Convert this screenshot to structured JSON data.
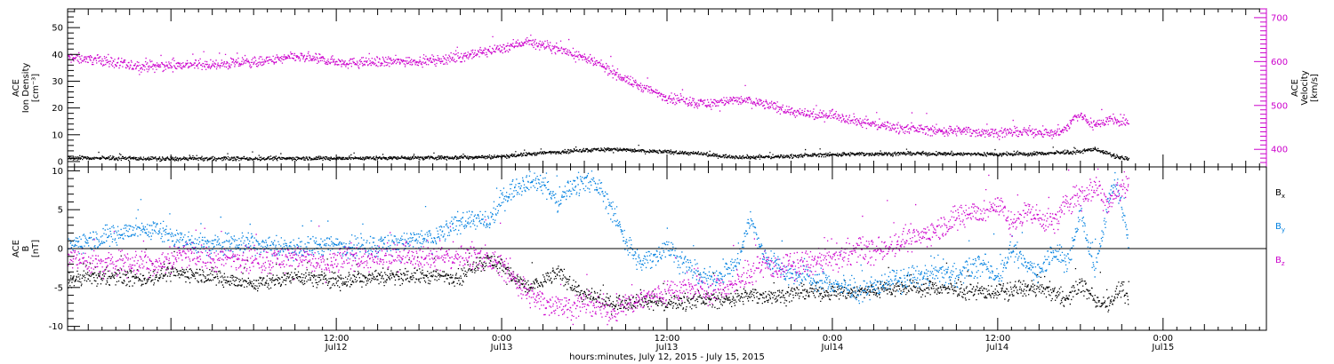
{
  "colors": {
    "black": "#000000",
    "magenta": "#cc00cc",
    "blue": "#0080e0",
    "axis": "#000000"
  },
  "xaxis": {
    "title": "hours:minutes, July 12, 2015 - July 15, 2015",
    "range_hours": [
      -7.5,
      79.5
    ],
    "ticks": [
      {
        "hour": 12,
        "time": "12:00",
        "date": "Jul12"
      },
      {
        "hour": 24,
        "time": "0:00",
        "date": "Jul13"
      },
      {
        "hour": 36,
        "time": "12:00",
        "date": "Jul13"
      },
      {
        "hour": 48,
        "time": "0:00",
        "date": "Jul14"
      },
      {
        "hour": 60,
        "time": "12:00",
        "date": "Jul14"
      },
      {
        "hour": 72,
        "time": "0:00",
        "date": "Jul15"
      }
    ]
  },
  "chart_data": [
    {
      "type": "scatter",
      "panel": "top",
      "left_axis": {
        "label_lines": [
          "ACE",
          "Ion Density",
          "[cm⁻³]"
        ],
        "ylim": [
          -2,
          57
        ],
        "ticks": [
          {
            "v": 0,
            "t": "0"
          },
          {
            "v": 10,
            "t": "10"
          },
          {
            "v": 20,
            "t": "20"
          },
          {
            "v": 30,
            "t": "30"
          },
          {
            "v": 40,
            "t": "40"
          },
          {
            "v": 50,
            "t": "50"
          }
        ]
      },
      "right_axis": {
        "label_lines": [
          "ACE",
          "Velocity",
          "[km/s]"
        ],
        "ylim": [
          360,
          720
        ],
        "ticks": [
          {
            "v": 400,
            "t": "400"
          },
          {
            "v": 500,
            "t": "500"
          },
          {
            "v": 600,
            "t": "600"
          },
          {
            "v": 700,
            "t": "700"
          }
        ]
      },
      "series": [
        {
          "axis": "right",
          "color": "magenta",
          "noise": 10,
          "x": [
            -7.5,
            -5,
            -3,
            -1,
            1,
            3,
            5,
            7,
            9,
            11,
            13,
            15,
            17,
            19,
            21,
            22,
            23,
            24,
            25,
            25.5,
            26,
            27,
            28,
            29,
            30,
            31,
            32,
            33,
            34,
            35,
            36,
            37,
            38,
            39,
            40,
            41,
            42,
            43,
            44,
            45,
            46,
            47,
            48,
            49,
            50,
            51,
            52,
            53,
            54,
            55,
            56,
            57,
            58,
            59,
            60,
            61,
            62,
            63,
            64,
            64.5,
            65,
            65.5,
            66,
            67,
            68,
            69,
            69.5
          ],
          "y": [
            610,
            605,
            590,
            590,
            595,
            592,
            598,
            602,
            612,
            605,
            598,
            600,
            602,
            603,
            612,
            618,
            625,
            632,
            640,
            645,
            645,
            637,
            630,
            622,
            608,
            595,
            578,
            560,
            545,
            532,
            520,
            515,
            508,
            505,
            510,
            513,
            512,
            505,
            496,
            488,
            480,
            478,
            482,
            472,
            464,
            458,
            454,
            450,
            448,
            445,
            443,
            443,
            442,
            440,
            440,
            440,
            441,
            442,
            436,
            444,
            450,
            473,
            478,
            455,
            470,
            462,
            458
          ]
        },
        {
          "axis": "left",
          "color": "black",
          "noise": 0.6,
          "x": [
            -7.5,
            0,
            5,
            10,
            15,
            20,
            24,
            26,
            28,
            30,
            32,
            34,
            36,
            38,
            40,
            42,
            44,
            46,
            48,
            50,
            52,
            54,
            56,
            58,
            60,
            62,
            64,
            66,
            67,
            68,
            69,
            69.5
          ],
          "y": [
            1.6,
            1.2,
            1.3,
            1.4,
            1.5,
            1.7,
            2.0,
            3.0,
            3.8,
            4.5,
            4.8,
            4.2,
            3.8,
            3.2,
            2.2,
            1.8,
            2.0,
            2.5,
            2.8,
            3.0,
            3.1,
            3.2,
            3.1,
            3.0,
            2.9,
            3.0,
            3.4,
            3.8,
            5.0,
            3.0,
            1.5,
            1.0
          ]
        }
      ]
    },
    {
      "type": "scatter",
      "panel": "bottom",
      "left_axis": {
        "label_lines": [
          "ACE",
          "B",
          "[nT]"
        ],
        "ylim": [
          -10.5,
          10.5
        ],
        "ticks": [
          {
            "v": -10,
            "t": "-10"
          },
          {
            "v": -5,
            "t": "-5"
          },
          {
            "v": 0,
            "t": "0"
          },
          {
            "v": 5,
            "t": "5"
          },
          {
            "v": 10,
            "t": "10"
          }
        ]
      },
      "zero_line": true,
      "legend": [
        "Bx",
        "By",
        "Bz"
      ],
      "series": [
        {
          "name": "Bx",
          "axis": "left",
          "color": "black",
          "noise": 0.9,
          "x": [
            -7.5,
            -5,
            -2,
            0,
            3,
            6,
            9,
            12,
            15,
            18,
            21,
            22,
            23,
            24,
            25,
            26,
            28,
            30,
            32,
            34,
            36,
            38,
            40,
            42,
            44,
            46,
            48,
            50,
            52,
            54,
            56,
            58,
            60,
            62,
            64,
            65,
            66,
            67,
            68,
            69,
            69.5
          ],
          "y": [
            -4.0,
            -3.5,
            -3.8,
            -3.0,
            -3.5,
            -4.5,
            -3.5,
            -4.0,
            -3.5,
            -3.5,
            -3.5,
            -2.0,
            -1.5,
            -2.0,
            -4.0,
            -5.0,
            -3.0,
            -6.0,
            -7.0,
            -6.5,
            -7.0,
            -6.5,
            -6.5,
            -6.0,
            -6.0,
            -5.5,
            -5.5,
            -5.5,
            -5.0,
            -5.0,
            -5.0,
            -5.5,
            -5.5,
            -5.0,
            -5.5,
            -6.5,
            -4.5,
            -6.5,
            -7.0,
            -5.0,
            -7.0
          ]
        },
        {
          "name": "By",
          "axis": "left",
          "color": "blue",
          "noise": 1.2,
          "x": [
            -7.5,
            -5,
            -3,
            -1,
            1,
            3,
            5,
            7,
            9,
            11,
            13,
            15,
            17,
            19,
            21,
            22,
            23,
            24,
            25,
            26,
            27,
            28,
            29,
            30,
            31,
            32,
            33,
            34,
            35,
            36,
            37,
            38,
            39,
            40,
            41,
            42,
            43,
            44,
            45,
            46,
            47,
            48,
            49,
            50,
            51,
            52,
            53,
            54,
            55,
            56,
            57,
            58,
            59,
            60,
            61,
            62,
            63,
            64,
            65,
            66,
            67,
            68,
            68.5,
            69,
            69.5
          ],
          "y": [
            0.5,
            1.5,
            2.5,
            2.5,
            1.0,
            0.5,
            1.0,
            0.5,
            0.0,
            0.5,
            0.5,
            0.5,
            1.0,
            1.5,
            3.5,
            4.0,
            3.0,
            6.5,
            8.0,
            9.0,
            8.5,
            6.0,
            8.0,
            9.0,
            8.0,
            5.0,
            1.0,
            -2.0,
            -1.0,
            0.5,
            -1.5,
            -3.0,
            -4.0,
            -3.0,
            -2.0,
            4.0,
            -1.0,
            -2.0,
            -3.5,
            -3.5,
            -4.0,
            -4.5,
            -5.0,
            -5.5,
            -5.0,
            -4.0,
            -4.0,
            -3.5,
            -3.5,
            -3.0,
            -3.5,
            -2.5,
            -2.0,
            -3.5,
            0.0,
            -2.0,
            -3.0,
            0.0,
            -2.0,
            5.0,
            -3.0,
            6.0,
            9.0,
            5.0,
            1.0
          ]
        },
        {
          "name": "Bz",
          "axis": "left",
          "color": "magenta",
          "noise": 1.4,
          "x": [
            -7.5,
            -5,
            -3,
            -1,
            1,
            3,
            5,
            7,
            9,
            11,
            13,
            15,
            17,
            19,
            21,
            22,
            23,
            24,
            25,
            26,
            27,
            28,
            29,
            30,
            31,
            32,
            33,
            34,
            35,
            36,
            37,
            38,
            39,
            40,
            41,
            42,
            43,
            44,
            45,
            46,
            47,
            48,
            49,
            50,
            51,
            52,
            53,
            54,
            55,
            56,
            57,
            58,
            59,
            60,
            61,
            62,
            63,
            64,
            65,
            66,
            67,
            68,
            69,
            69.5
          ],
          "y": [
            -1.0,
            -2.0,
            -1.5,
            -2.0,
            -0.5,
            -1.5,
            -1.0,
            -1.5,
            -1.0,
            -2.0,
            -1.0,
            -1.5,
            -0.5,
            -1.0,
            -1.0,
            -0.5,
            -1.5,
            -2.0,
            -4.0,
            -6.0,
            -7.0,
            -7.0,
            -7.5,
            -7.0,
            -7.5,
            -8.0,
            -7.0,
            -6.5,
            -6.0,
            -5.5,
            -5.0,
            -5.0,
            -5.5,
            -5.0,
            -4.5,
            -3.0,
            -2.0,
            -2.5,
            -2.0,
            -2.0,
            -1.5,
            -1.5,
            -0.5,
            0.0,
            -0.5,
            0.5,
            1.0,
            1.5,
            2.0,
            3.0,
            4.0,
            5.0,
            4.5,
            6.0,
            3.0,
            5.0,
            4.0,
            3.5,
            6.0,
            7.0,
            8.0,
            6.0,
            8.0,
            9.0
          ]
        }
      ]
    }
  ]
}
